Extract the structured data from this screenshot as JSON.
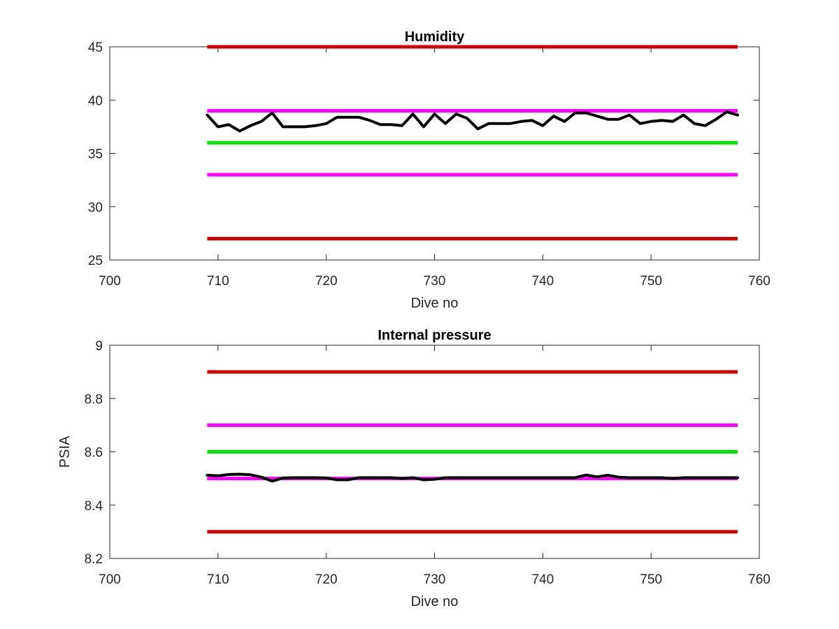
{
  "chart_data": [
    {
      "type": "line",
      "title": "Humidity",
      "xlabel": "Dive no",
      "ylabel": "",
      "xlim": [
        700,
        760
      ],
      "ylim": [
        25,
        45
      ],
      "xticks": [
        "700",
        "710",
        "720",
        "730",
        "740",
        "750",
        "760"
      ],
      "yticks": [
        "25",
        "30",
        "35",
        "40",
        "45"
      ],
      "grid": false,
      "limits": [
        {
          "y": 45,
          "x": [
            709,
            758
          ],
          "color": "#d40000"
        },
        {
          "y": 39,
          "x": [
            709,
            758
          ],
          "color": "#ff00ff"
        },
        {
          "y": 36,
          "x": [
            709,
            758
          ],
          "color": "#00e600"
        },
        {
          "y": 33,
          "x": [
            709,
            758
          ],
          "color": "#ff00ff"
        },
        {
          "y": 27,
          "x": [
            709,
            758
          ],
          "color": "#d40000"
        }
      ],
      "series": [
        {
          "color": "#000000",
          "x": [
            709,
            710,
            711,
            712,
            713,
            714,
            715,
            716,
            717,
            718,
            719,
            720,
            721,
            722,
            723,
            724,
            725,
            726,
            727,
            728,
            729,
            730,
            731,
            732,
            733,
            734,
            735,
            736,
            737,
            738,
            739,
            740,
            741,
            742,
            743,
            744,
            745,
            746,
            747,
            748,
            749,
            750,
            751,
            752,
            753,
            754,
            755,
            756,
            757,
            758
          ],
          "y": [
            38.6,
            37.5,
            37.7,
            37.1,
            37.6,
            38.0,
            38.8,
            37.5,
            37.5,
            37.5,
            37.6,
            37.8,
            38.4,
            38.4,
            38.4,
            38.1,
            37.7,
            37.7,
            37.6,
            38.7,
            37.5,
            38.7,
            37.8,
            38.7,
            38.3,
            37.3,
            37.8,
            37.8,
            37.8,
            38.0,
            38.1,
            37.6,
            38.5,
            38.0,
            38.8,
            38.8,
            38.5,
            38.2,
            38.2,
            38.6,
            37.8,
            38.0,
            38.1,
            38.0,
            38.6,
            37.8,
            37.6,
            38.2,
            38.9,
            38.6
          ]
        }
      ]
    },
    {
      "type": "line",
      "title": "Internal pressure",
      "xlabel": "Dive no",
      "ylabel": "PSIA",
      "xlim": [
        700,
        760
      ],
      "ylim": [
        8.2,
        9.0
      ],
      "xticks": [
        "700",
        "710",
        "720",
        "730",
        "740",
        "750",
        "760"
      ],
      "yticks": [
        "8.2",
        "8.4",
        "8.6",
        "8.8",
        "9"
      ],
      "grid": false,
      "limits": [
        {
          "y": 8.9,
          "x": [
            709,
            758
          ],
          "color": "#d40000"
        },
        {
          "y": 8.7,
          "x": [
            709,
            758
          ],
          "color": "#ff00ff"
        },
        {
          "y": 8.6,
          "x": [
            709,
            758
          ],
          "color": "#00e600"
        },
        {
          "y": 8.5,
          "x": [
            709,
            758
          ],
          "color": "#ff00ff"
        },
        {
          "y": 8.3,
          "x": [
            709,
            758
          ],
          "color": "#d40000"
        }
      ],
      "series": [
        {
          "color": "#000000",
          "x": [
            709,
            710,
            711,
            712,
            713,
            714,
            715,
            716,
            717,
            718,
            719,
            720,
            721,
            722,
            723,
            724,
            725,
            726,
            727,
            728,
            729,
            730,
            731,
            732,
            733,
            734,
            735,
            736,
            737,
            738,
            739,
            740,
            741,
            742,
            743,
            744,
            745,
            746,
            747,
            748,
            749,
            750,
            751,
            752,
            753,
            754,
            755,
            756,
            757,
            758
          ],
          "y": [
            8.512,
            8.51,
            8.515,
            8.516,
            8.514,
            8.505,
            8.49,
            8.502,
            8.503,
            8.503,
            8.503,
            8.502,
            8.495,
            8.495,
            8.503,
            8.503,
            8.503,
            8.503,
            8.5,
            8.503,
            8.495,
            8.497,
            8.503,
            8.503,
            8.503,
            8.503,
            8.503,
            8.503,
            8.503,
            8.503,
            8.503,
            8.503,
            8.503,
            8.503,
            8.503,
            8.513,
            8.506,
            8.512,
            8.505,
            8.503,
            8.503,
            8.503,
            8.503,
            8.5,
            8.503,
            8.503,
            8.503,
            8.503,
            8.503,
            8.503
          ]
        }
      ]
    }
  ]
}
